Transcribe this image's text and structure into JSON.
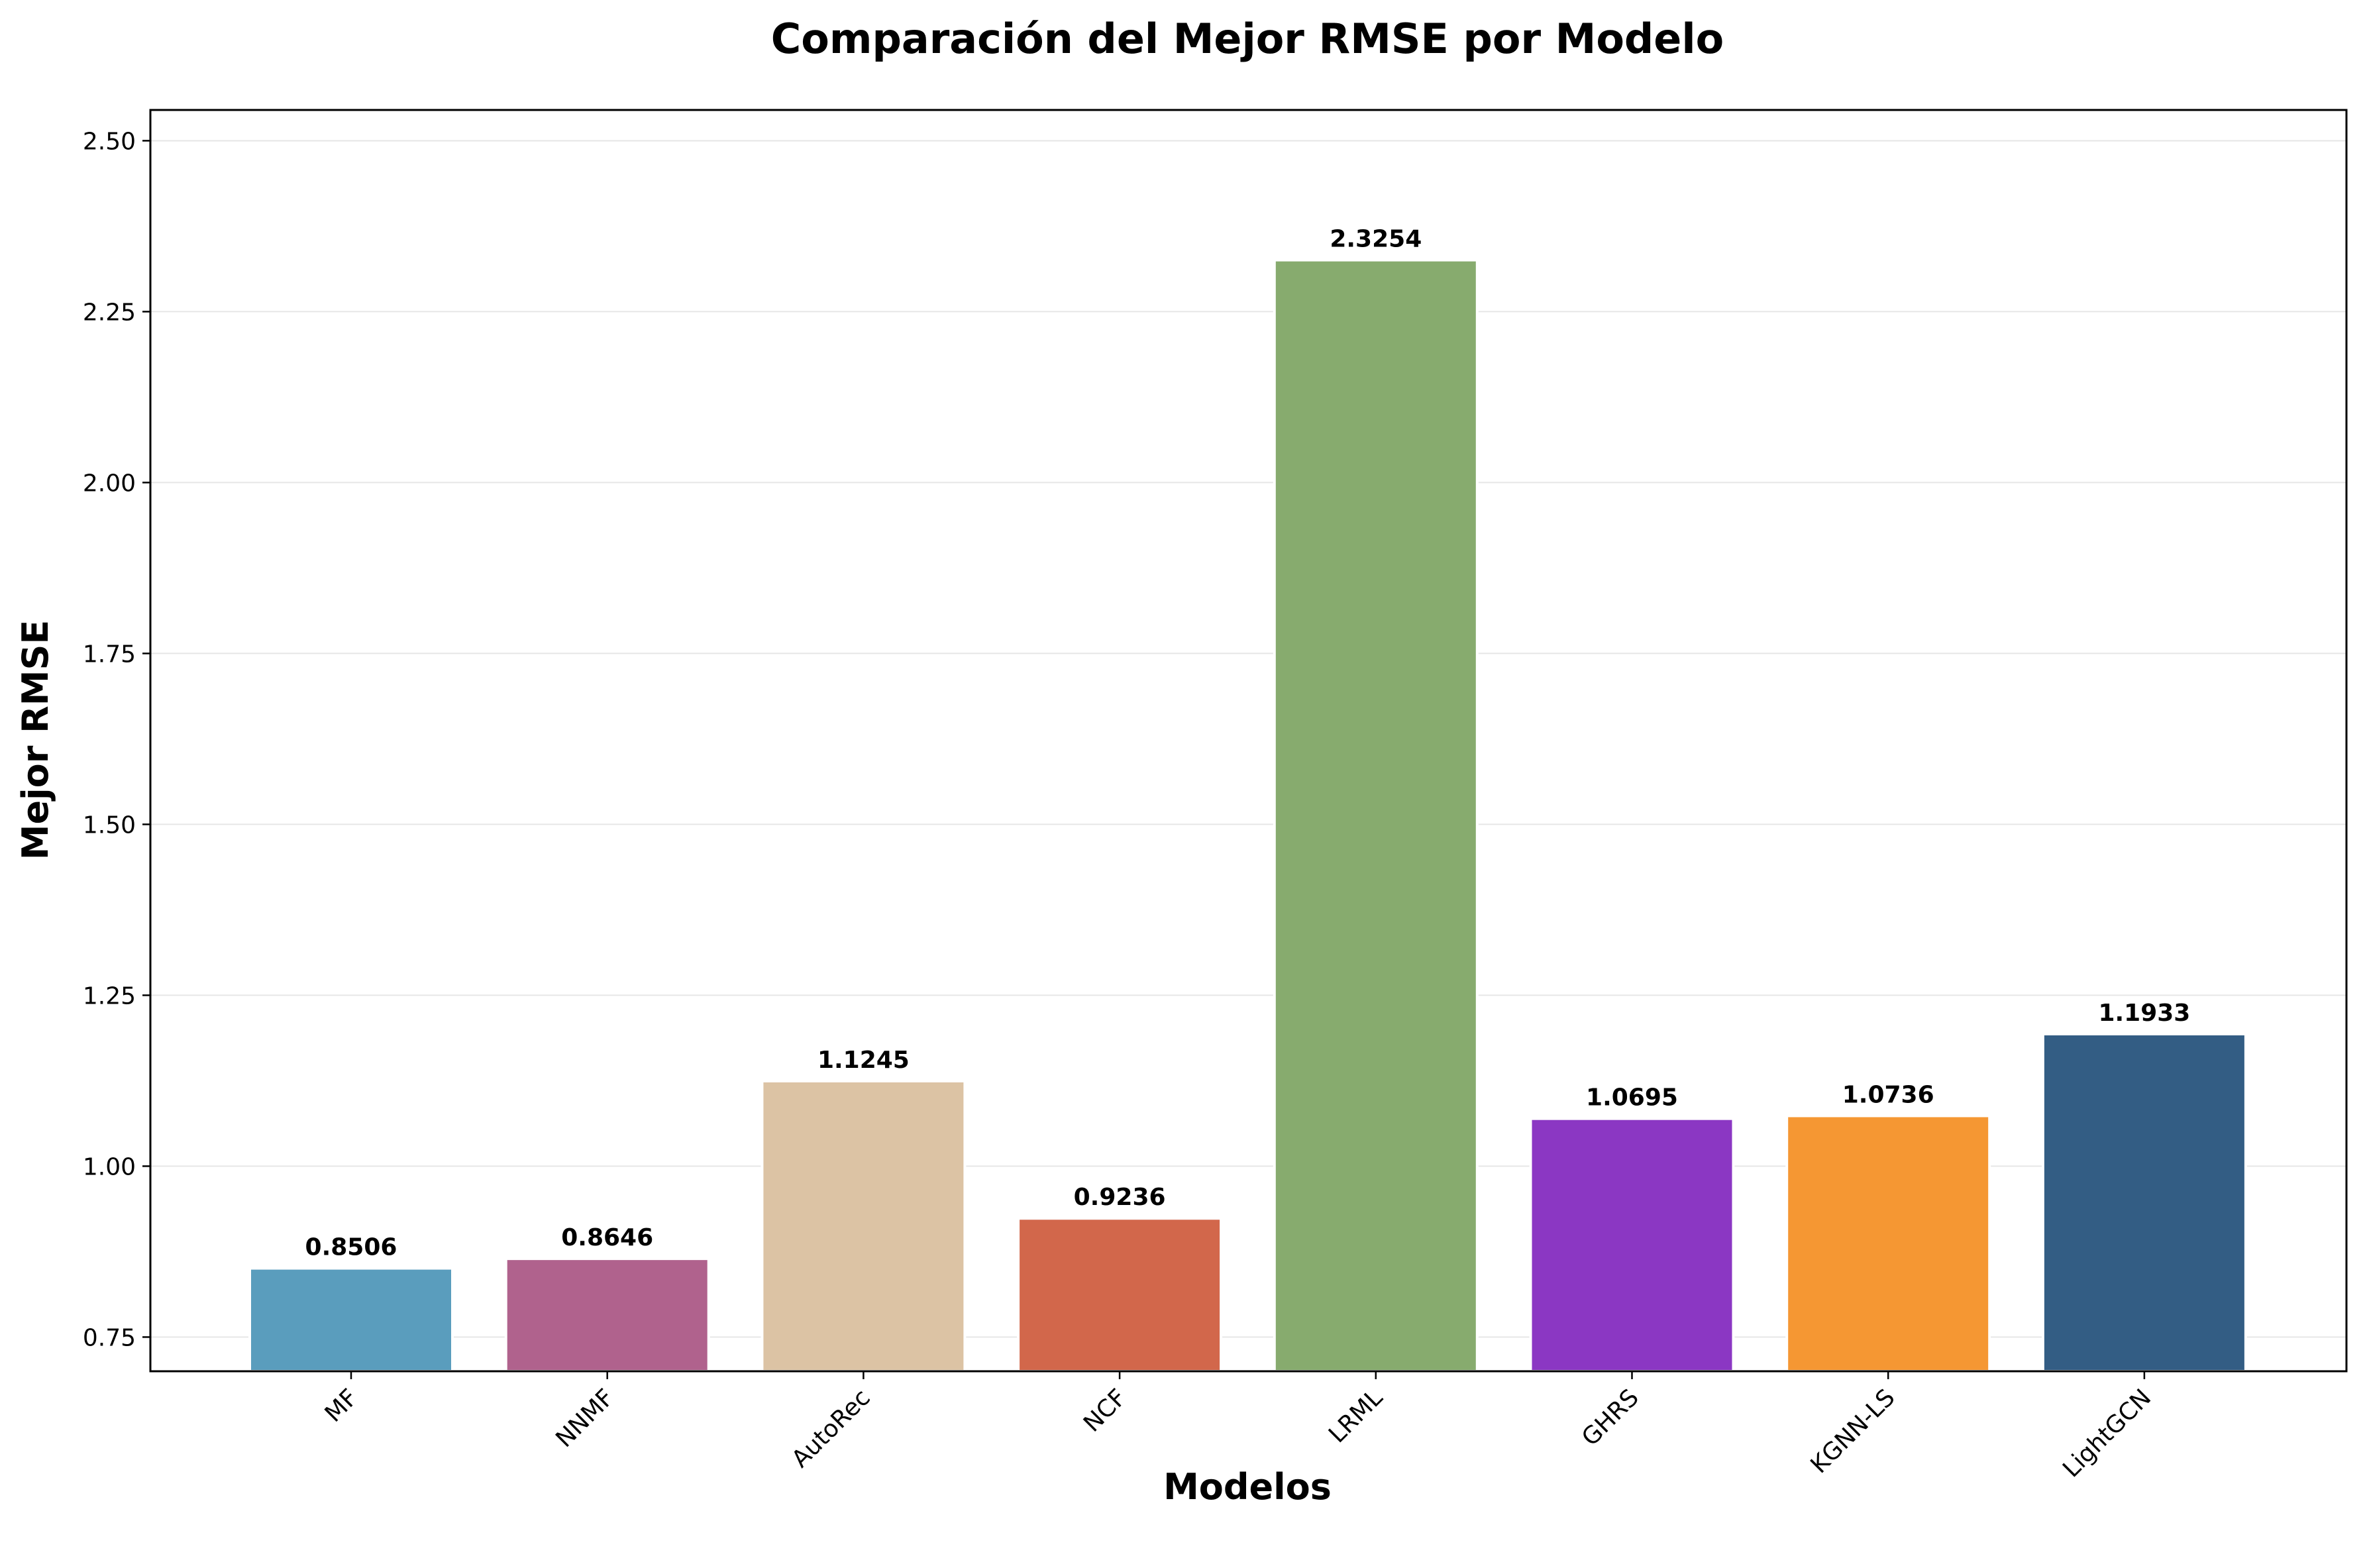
{
  "chart_data": {
    "type": "bar",
    "title": "Comparación del Mejor RMSE por Modelo",
    "xlabel": "Modelos",
    "ylabel": "Mejor RMSE",
    "categories": [
      "MF",
      "NNMF",
      "AutoRec",
      "NCF",
      "LRML",
      "GHRS",
      "KGNN-LS",
      "LightGCN"
    ],
    "values": [
      0.8506,
      0.8646,
      1.1245,
      0.9236,
      2.3254,
      1.0695,
      1.0736,
      1.1933
    ],
    "value_labels": [
      "0.8506",
      "0.8646",
      "1.1245",
      "0.9236",
      "2.3254",
      "1.0695",
      "1.0736",
      "1.1933"
    ],
    "colors": [
      "#5a9dbd",
      "#b0628d",
      "#dcc3a4",
      "#d2674b",
      "#87ab6e",
      "#8b37c3",
      "#f59733",
      "#335d84"
    ],
    "ylim": [
      0.7,
      2.545
    ],
    "yticks": [
      0.75,
      1.0,
      1.25,
      1.5,
      1.75,
      2.0,
      2.25,
      2.5
    ],
    "ytick_labels": [
      "0.75",
      "1.00",
      "1.25",
      "1.50",
      "1.75",
      "2.00",
      "2.25",
      "2.50"
    ],
    "grid": "horizontal",
    "legend": "none"
  }
}
